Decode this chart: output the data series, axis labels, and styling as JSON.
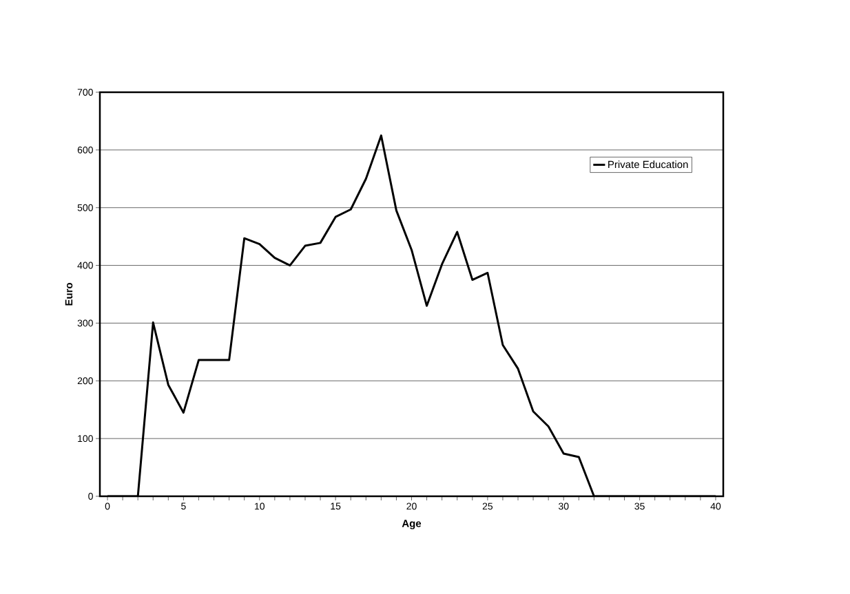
{
  "chart_data": {
    "type": "line",
    "xlabel": "Age",
    "ylabel": "Euro",
    "x": [
      0,
      1,
      2,
      3,
      4,
      5,
      6,
      7,
      8,
      9,
      10,
      11,
      12,
      13,
      14,
      15,
      16,
      17,
      18,
      19,
      20,
      21,
      22,
      23,
      24,
      25,
      26,
      27,
      28,
      29,
      30,
      31,
      32,
      33,
      34,
      35,
      36,
      37,
      38,
      39,
      40
    ],
    "series": [
      {
        "name": "Private Education",
        "color": "#000000",
        "values": [
          0,
          0,
          0,
          301,
          193,
          145,
          236,
          236,
          236,
          447,
          437,
          413,
          400,
          434,
          439,
          484,
          497,
          550,
          625,
          495,
          427,
          330,
          402,
          458,
          375,
          387,
          262,
          221,
          147,
          121,
          74,
          68,
          0,
          0,
          0,
          0,
          0,
          0,
          0,
          0,
          0
        ]
      }
    ],
    "xlim": [
      -0.5,
      40.5
    ],
    "ylim": [
      0,
      700
    ],
    "xticks": [
      0,
      {
        "value": 1,
        "label": null
      },
      {
        "value": 2,
        "label": null
      },
      {
        "value": 3,
        "label": null
      },
      {
        "value": 4,
        "label": null
      },
      5,
      {
        "value": 6,
        "label": null
      },
      {
        "value": 7,
        "label": null
      },
      {
        "value": 8,
        "label": null
      },
      {
        "value": 9,
        "label": null
      },
      10,
      {
        "value": 11,
        "label": null
      },
      {
        "value": 12,
        "label": null
      },
      {
        "value": 13,
        "label": null
      },
      {
        "value": 14,
        "label": null
      },
      15,
      {
        "value": 16,
        "label": null
      },
      {
        "value": 17,
        "label": null
      },
      {
        "value": 18,
        "label": null
      },
      {
        "value": 19,
        "label": null
      },
      20,
      {
        "value": 21,
        "label": null
      },
      {
        "value": 22,
        "label": null
      },
      {
        "value": 23,
        "label": null
      },
      {
        "value": 24,
        "label": null
      },
      25,
      {
        "value": 26,
        "label": null
      },
      {
        "value": 27,
        "label": null
      },
      {
        "value": 28,
        "label": null
      },
      {
        "value": 29,
        "label": null
      },
      30,
      {
        "value": 31,
        "label": null
      },
      {
        "value": 32,
        "label": null
      },
      {
        "value": 33,
        "label": null
      },
      {
        "value": 34,
        "label": null
      },
      35,
      {
        "value": 36,
        "label": null
      },
      {
        "value": 37,
        "label": null
      },
      {
        "value": 38,
        "label": null
      },
      {
        "value": 39,
        "label": null
      },
      40
    ],
    "yticks": [
      0,
      100,
      200,
      300,
      400,
      500,
      600,
      700
    ],
    "grid": "y",
    "legend": "top right",
    "marker": "none",
    "line_style": "solid"
  }
}
